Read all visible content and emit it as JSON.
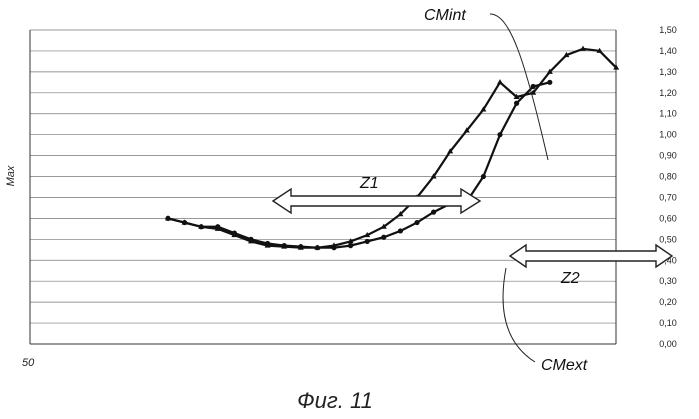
{
  "chart_data": {
    "type": "line",
    "title": "",
    "ylabel": "Max",
    "x_start_label": "50",
    "ylim": [
      0,
      1.5
    ],
    "y_ticks": [
      "0,00",
      "0,10",
      "0,20",
      "0,30",
      "0,40",
      "0,50",
      "0,60",
      "0,70",
      "0,80",
      "0,90",
      "1,00",
      "1,10",
      "1,20",
      "1,30",
      "1,40",
      "1,50"
    ],
    "y_axis_side": "right",
    "grid": true,
    "series": [
      {
        "name": "CMint",
        "marker": "triangle",
        "values": [
          0.6,
          0.58,
          0.56,
          0.55,
          0.52,
          0.49,
          0.47,
          0.465,
          0.46,
          0.46,
          0.47,
          0.49,
          0.52,
          0.56,
          0.62,
          0.7,
          0.8,
          0.92,
          1.02,
          1.12,
          1.25,
          1.18,
          1.2,
          1.3,
          1.38,
          1.41,
          1.4,
          1.32
        ]
      },
      {
        "name": "CMext",
        "marker": "dot",
        "values": [
          0.6,
          0.58,
          0.56,
          0.56,
          0.53,
          0.5,
          0.48,
          0.47,
          0.465,
          0.46,
          0.46,
          0.47,
          0.49,
          0.51,
          0.54,
          0.58,
          0.63,
          0.67,
          0.68,
          0.8,
          1.0,
          1.15,
          1.23,
          1.25
        ]
      }
    ],
    "annotations": {
      "z1": "Z1",
      "z2": "Z2"
    }
  },
  "caption": "Фиг. 11"
}
